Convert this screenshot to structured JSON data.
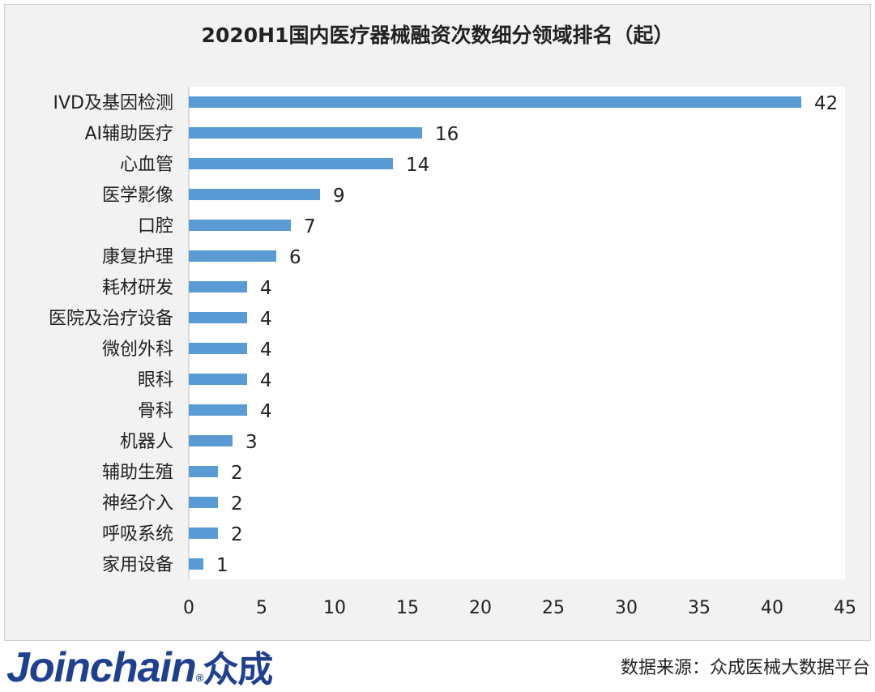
{
  "chart_data": {
    "type": "bar",
    "orientation": "horizontal",
    "title": "2020H1国内医疗器械融资次数细分领域排名（起）",
    "categories": [
      "IVD及基因检测",
      "AI辅助医疗",
      "心血管",
      "医学影像",
      "口腔",
      "康复护理",
      "耗材研发",
      "医院及治疗设备",
      "微创外科",
      "眼科",
      "骨科",
      "机器人",
      "辅助生殖",
      "神经介入",
      "呼吸系统",
      "家用设备"
    ],
    "values": [
      42,
      16,
      14,
      9,
      7,
      6,
      4,
      4,
      4,
      4,
      4,
      3,
      2,
      2,
      2,
      1
    ],
    "xlim": [
      0,
      45
    ],
    "xticks": [
      0,
      5,
      10,
      15,
      20,
      25,
      30,
      35,
      40,
      45
    ],
    "xlabel": "",
    "ylabel": "",
    "grid": false,
    "bar_color": "#5b9bd5"
  },
  "footer": {
    "logo_text": "Joinchain",
    "logo_cn": "众成",
    "source": "数据来源：众成医械大数据平台"
  }
}
